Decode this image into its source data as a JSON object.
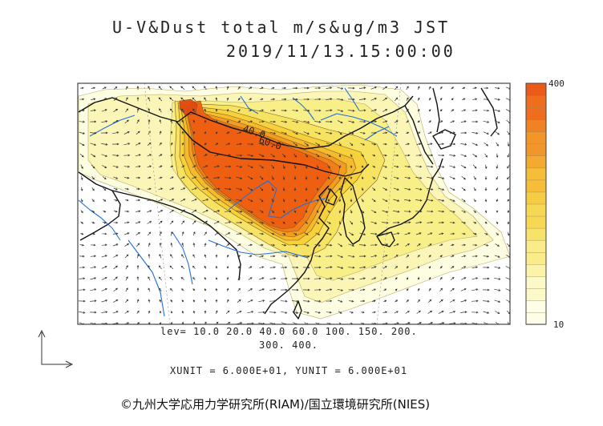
{
  "chart_data": {
    "type": "heatmap",
    "title": "U-V&Dust total m/s&ug/m3 JST",
    "subtitle": "2019/11/13.15:00:00",
    "colorbar": {
      "min": 10,
      "max": 400,
      "tick_labels": [
        "400",
        "10"
      ]
    },
    "contour_levels": [
      10.0,
      20.0,
      40.0,
      60.0,
      100.0,
      150.0,
      200.0,
      300.0,
      400.0
    ],
    "contour_line_labels": [
      "40.0",
      "60.0"
    ],
    "level_line1": "lev= 10.0 20.0 40.0 60.0 100. 150. 200.",
    "level_line2": "300. 400.",
    "units_line": "XUNIT = 6.000E+01, YUNIT = 6.000E+01"
  },
  "colors": {
    "scale": [
      "#fdfde0",
      "#fbf5b4",
      "#f9ee86",
      "#f7e260",
      "#f5d03a",
      "#f4b82c",
      "#f29a22",
      "#f07c1a",
      "#ee5e12"
    ],
    "coast": "#111111",
    "river": "#1f6fe0",
    "arrow": "#333333",
    "frame": "#444444"
  },
  "credit": "©九州大学応用力学研究所(RIAM)/国立環境研究所(NIES)"
}
